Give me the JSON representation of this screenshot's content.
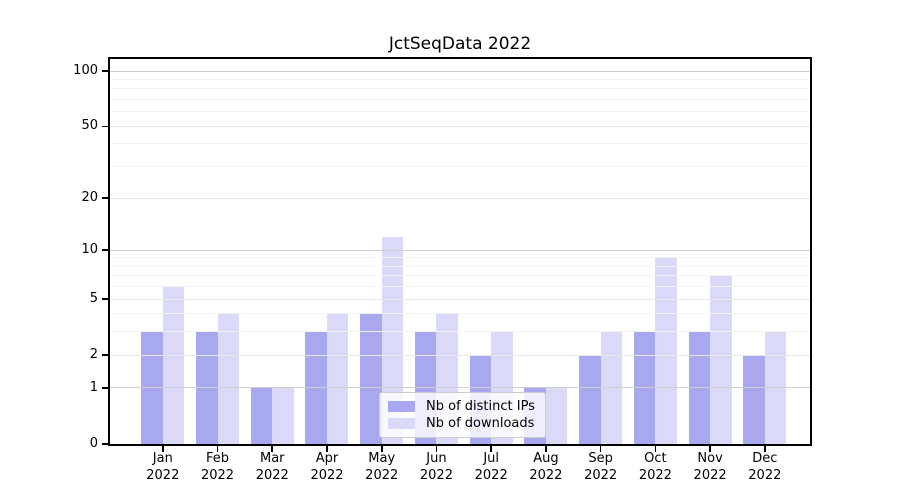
{
  "figure": {
    "background": "#ffffff"
  },
  "chart_data": {
    "type": "bar",
    "title": "JctSeqData 2022",
    "xlabel": "",
    "ylabel": "",
    "yscale": "log1p",
    "ylim": [
      0,
      117
    ],
    "yticks": [
      0,
      1,
      2,
      5,
      10,
      20,
      50,
      100
    ],
    "minor_yticks": [
      3,
      4,
      6,
      7,
      8,
      9,
      30,
      40,
      60,
      70,
      80,
      90
    ],
    "grid": "horizontal major + minor",
    "legend_position": "lower center",
    "categories": [
      {
        "month": "Jan",
        "year": "2022"
      },
      {
        "month": "Feb",
        "year": "2022"
      },
      {
        "month": "Mar",
        "year": "2022"
      },
      {
        "month": "Apr",
        "year": "2022"
      },
      {
        "month": "May",
        "year": "2022"
      },
      {
        "month": "Jun",
        "year": "2022"
      },
      {
        "month": "Jul",
        "year": "2022"
      },
      {
        "month": "Aug",
        "year": "2022"
      },
      {
        "month": "Sep",
        "year": "2022"
      },
      {
        "month": "Oct",
        "year": "2022"
      },
      {
        "month": "Nov",
        "year": "2022"
      },
      {
        "month": "Dec",
        "year": "2022"
      }
    ],
    "series": [
      {
        "name": "Nb of distinct IPs",
        "color": "#a8a8ef",
        "values": [
          3,
          3,
          1,
          3,
          4,
          3,
          2,
          1,
          2,
          3,
          3,
          2
        ]
      },
      {
        "name": "Nb of downloads",
        "color": "#dadaf8",
        "values": [
          6,
          4,
          1,
          4,
          12,
          4,
          3,
          1,
          3,
          9,
          7,
          3
        ]
      }
    ]
  },
  "colors": {
    "grid_decade": "#cfcfcf",
    "grid_labeled": "#e8e8e8",
    "grid_minor": "#f2f2f2",
    "axis": "#000000",
    "legend_border": "#cccccc"
  }
}
